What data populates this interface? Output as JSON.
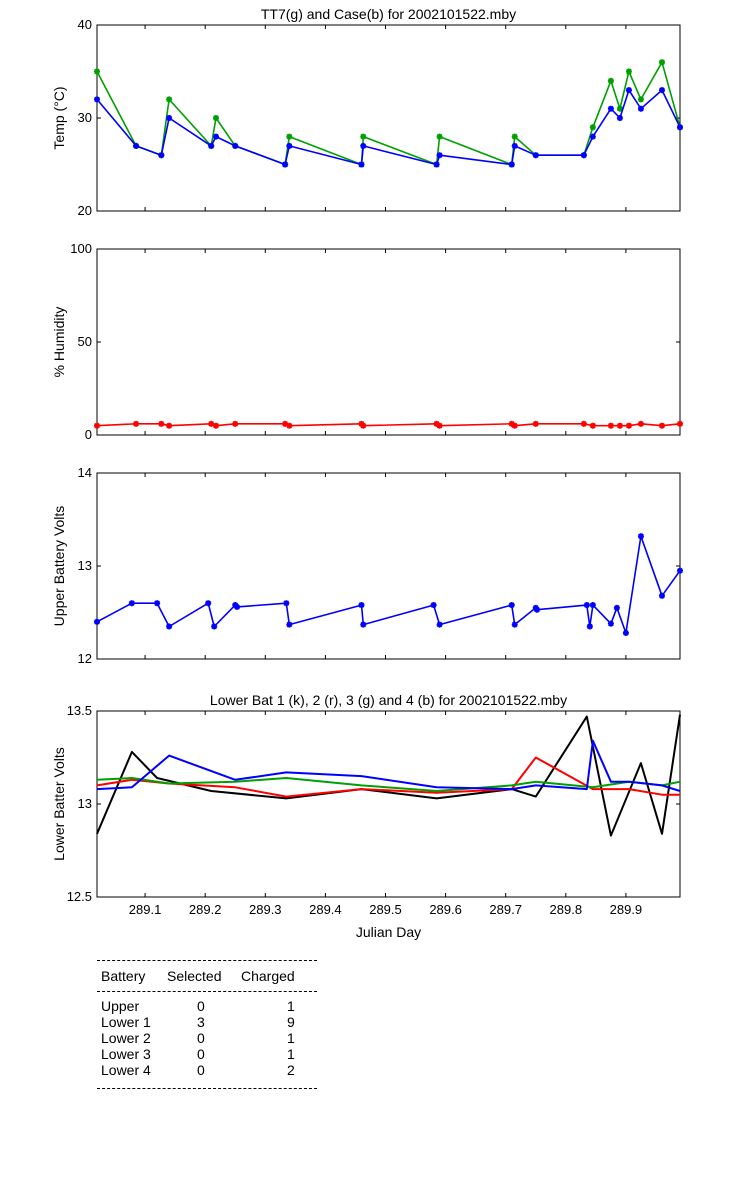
{
  "chart_data": [
    {
      "type": "line",
      "title": "TT7(g) and Case(b) for 2002101522.mby",
      "xlabel": "",
      "ylabel": "Temp  (°C)",
      "xlim": [
        289.02,
        289.99
      ],
      "ylim": [
        20,
        40
      ],
      "yticks": [
        "20",
        "30",
        "40"
      ],
      "series": [
        {
          "name": "TT7",
          "color": "#00a000",
          "x": [
            289.02,
            289.085,
            289.127,
            289.14,
            289.21,
            289.218,
            289.25,
            289.333,
            289.34,
            289.46,
            289.463,
            289.585,
            289.59,
            289.71,
            289.715,
            289.75,
            289.83,
            289.845,
            289.875,
            289.89,
            289.905,
            289.925,
            289.96,
            289.99
          ],
          "y": [
            35,
            27,
            26,
            32,
            27,
            30,
            27,
            25,
            28,
            25,
            28,
            25,
            28,
            25,
            28,
            26,
            26,
            29,
            34,
            31,
            35,
            32,
            36,
            29
          ]
        },
        {
          "name": "Case",
          "color": "#0000ff",
          "x": [
            289.02,
            289.085,
            289.127,
            289.14,
            289.21,
            289.218,
            289.25,
            289.333,
            289.34,
            289.46,
            289.463,
            289.585,
            289.59,
            289.71,
            289.715,
            289.75,
            289.83,
            289.845,
            289.875,
            289.89,
            289.905,
            289.925,
            289.96,
            289.99
          ],
          "y": [
            32,
            27,
            26,
            30,
            27,
            28,
            27,
            25,
            27,
            25,
            27,
            25,
            26,
            25,
            27,
            26,
            26,
            28,
            31,
            30,
            33,
            31,
            33,
            29
          ]
        }
      ]
    },
    {
      "type": "line",
      "title": "",
      "xlabel": "",
      "ylabel": "% Humidity",
      "xlim": [
        289.02,
        289.99
      ],
      "ylim": [
        0,
        100
      ],
      "yticks": [
        "0",
        "50",
        "100"
      ],
      "series": [
        {
          "name": "Humidity",
          "color": "#ff0000",
          "x": [
            289.02,
            289.085,
            289.127,
            289.14,
            289.21,
            289.218,
            289.25,
            289.333,
            289.34,
            289.46,
            289.463,
            289.585,
            289.59,
            289.71,
            289.715,
            289.75,
            289.83,
            289.845,
            289.875,
            289.89,
            289.905,
            289.925,
            289.96,
            289.99
          ],
          "y": [
            5,
            6,
            6,
            5,
            6,
            5,
            6,
            6,
            5,
            6,
            5,
            6,
            5,
            6,
            5,
            6,
            6,
            5,
            5,
            5,
            5,
            6,
            5,
            6
          ]
        }
      ]
    },
    {
      "type": "line",
      "title": "",
      "xlabel": "",
      "ylabel": "Upper Battery Volts",
      "xlim": [
        289.02,
        289.99
      ],
      "ylim": [
        12,
        14
      ],
      "yticks": [
        "12",
        "13",
        "14"
      ],
      "series": [
        {
          "name": "Upper",
          "color": "#0000ff",
          "x": [
            289.02,
            289.078,
            289.12,
            289.14,
            289.205,
            289.215,
            289.25,
            289.253,
            289.335,
            289.34,
            289.46,
            289.463,
            289.58,
            289.59,
            289.71,
            289.715,
            289.75,
            289.752,
            289.835,
            289.84,
            289.845,
            289.875,
            289.885,
            289.9,
            289.925,
            289.96,
            289.99
          ],
          "y": [
            12.4,
            12.6,
            12.6,
            12.35,
            12.6,
            12.35,
            12.58,
            12.56,
            12.6,
            12.37,
            12.58,
            12.37,
            12.58,
            12.37,
            12.58,
            12.37,
            12.55,
            12.53,
            12.58,
            12.35,
            12.58,
            12.38,
            12.55,
            12.28,
            13.32,
            12.68,
            12.95
          ]
        }
      ]
    },
    {
      "type": "line",
      "title": "Lower Bat 1 (k), 2 (r), 3 (g) and 4 (b) for 2002101522.mby",
      "xlabel": "Julian Day",
      "ylabel": "Lower Batter Volts",
      "xlim": [
        289.02,
        289.99
      ],
      "ylim": [
        12.5,
        13.5
      ],
      "yticks": [
        "12.5",
        "13",
        "13.5"
      ],
      "xticks": [
        "289.1",
        "289.2",
        "289.3",
        "289.4",
        "289.5",
        "289.6",
        "289.7",
        "289.8",
        "289.9"
      ],
      "series": [
        {
          "name": "1 (k)",
          "color": "#000000",
          "x": [
            289.02,
            289.078,
            289.12,
            289.21,
            289.335,
            289.46,
            289.585,
            289.71,
            289.75,
            289.835,
            289.875,
            289.925,
            289.96,
            289.99
          ],
          "y": [
            12.84,
            13.28,
            13.14,
            13.07,
            13.03,
            13.08,
            13.03,
            13.08,
            13.04,
            13.47,
            12.83,
            13.22,
            12.84,
            13.48
          ]
        },
        {
          "name": "2 (r)",
          "color": "#ff0000",
          "x": [
            289.02,
            289.078,
            289.14,
            289.25,
            289.335,
            289.46,
            289.585,
            289.71,
            289.75,
            289.845,
            289.905,
            289.96,
            289.99
          ],
          "y": [
            13.1,
            13.13,
            13.11,
            13.09,
            13.04,
            13.08,
            13.06,
            13.08,
            13.25,
            13.08,
            13.08,
            13.05,
            13.05
          ]
        },
        {
          "name": "3 (g)",
          "color": "#00a000",
          "x": [
            289.02,
            289.078,
            289.14,
            289.25,
            289.335,
            289.46,
            289.585,
            289.71,
            289.75,
            289.845,
            289.905,
            289.96,
            289.99
          ],
          "y": [
            13.13,
            13.14,
            13.11,
            13.12,
            13.14,
            13.1,
            13.07,
            13.1,
            13.12,
            13.09,
            13.12,
            13.1,
            13.12
          ]
        },
        {
          "name": "4 (b)",
          "color": "#0000ff",
          "x": [
            289.02,
            289.078,
            289.14,
            289.25,
            289.335,
            289.46,
            289.585,
            289.71,
            289.75,
            289.835,
            289.845,
            289.875,
            289.905,
            289.96,
            289.99
          ],
          "y": [
            13.08,
            13.09,
            13.26,
            13.13,
            13.17,
            13.15,
            13.09,
            13.08,
            13.1,
            13.08,
            13.34,
            13.12,
            13.12,
            13.1,
            13.07
          ]
        }
      ]
    }
  ],
  "stats_table": {
    "headers": [
      "Battery",
      "Selected",
      "Charged"
    ],
    "rows": [
      {
        "battery": "Upper",
        "selected": "0",
        "charged": "1"
      },
      {
        "battery": "Lower 1",
        "selected": "3",
        "charged": "9"
      },
      {
        "battery": "Lower 2",
        "selected": "0",
        "charged": "1"
      },
      {
        "battery": "Lower 3",
        "selected": "0",
        "charged": "1"
      },
      {
        "battery": "Lower 4",
        "selected": "0",
        "charged": "2"
      }
    ]
  }
}
